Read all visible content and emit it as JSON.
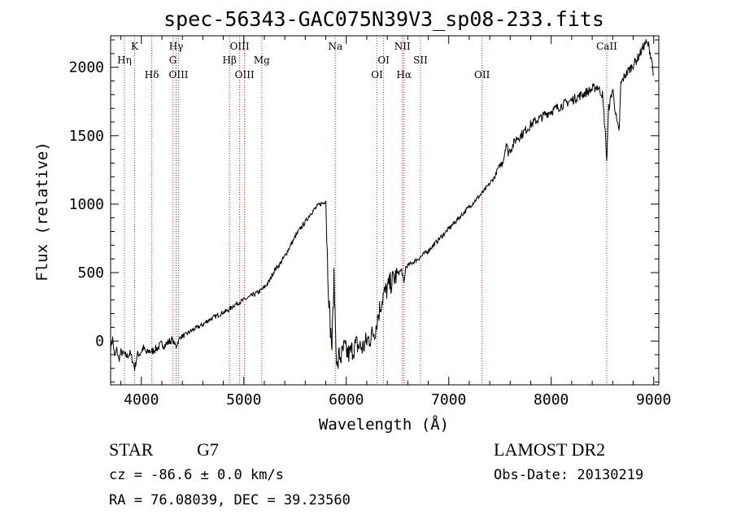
{
  "footer": {
    "object_class": "STAR",
    "subclass": "G7",
    "survey": "LAMOST DR2",
    "redshift_line": "cz = -86.6 ± 0.0 km/s",
    "coords_line": "RA =  76.08039, DEC =  39.23560",
    "obs_date_line": "Obs-Date: 20130219"
  },
  "colors": {
    "spectrum": "#000000",
    "line_markers": "#b03030",
    "axes": "#000000"
  },
  "chart_data": {
    "type": "line",
    "title": "spec-56343-GAC075N39V3_sp08-233.fits",
    "xlabel": "Wavelength (Å)",
    "ylabel": "Flux (relative)",
    "xlim": [
      3700,
      9050
    ],
    "ylim": [
      -320,
      2230
    ],
    "grid": false,
    "xticks": [
      4000,
      5000,
      6000,
      7000,
      8000,
      9000
    ],
    "yticks": [
      0,
      500,
      1000,
      1500,
      2000
    ],
    "series": [
      {
        "values": [
          [
            3700,
            -50
          ],
          [
            3720,
            20
          ],
          [
            3740,
            -120
          ],
          [
            3760,
            -60
          ],
          [
            3780,
            -140
          ],
          [
            3800,
            -80
          ],
          [
            3830,
            -100
          ],
          [
            3860,
            -110
          ],
          [
            3890,
            -90
          ],
          [
            3910,
            -130
          ],
          [
            3935,
            -200
          ],
          [
            3960,
            -100
          ],
          [
            3990,
            -90
          ],
          [
            4020,
            -50
          ],
          [
            4050,
            -90
          ],
          [
            4080,
            -70
          ],
          [
            4100,
            -80
          ],
          [
            4130,
            -60
          ],
          [
            4160,
            -50
          ],
          [
            4200,
            -20
          ],
          [
            4230,
            -30
          ],
          [
            4260,
            -10
          ],
          [
            4300,
            10
          ],
          [
            4340,
            -40
          ],
          [
            4380,
            30
          ],
          [
            4420,
            40
          ],
          [
            4460,
            60
          ],
          [
            4500,
            80
          ],
          [
            4550,
            100
          ],
          [
            4600,
            120
          ],
          [
            4650,
            150
          ],
          [
            4700,
            170
          ],
          [
            4750,
            190
          ],
          [
            4800,
            210
          ],
          [
            4860,
            230
          ],
          [
            4900,
            260
          ],
          [
            4950,
            280
          ],
          [
            5000,
            300
          ],
          [
            5050,
            320
          ],
          [
            5100,
            340
          ],
          [
            5150,
            360
          ],
          [
            5200,
            390
          ],
          [
            5250,
            440
          ],
          [
            5300,
            520
          ],
          [
            5350,
            560
          ],
          [
            5400,
            620
          ],
          [
            5450,
            690
          ],
          [
            5500,
            760
          ],
          [
            5550,
            820
          ],
          [
            5600,
            870
          ],
          [
            5650,
            930
          ],
          [
            5700,
            970
          ],
          [
            5740,
            1000
          ],
          [
            5780,
            1010
          ],
          [
            5800,
            1030
          ],
          [
            5820,
            500
          ],
          [
            5840,
            150
          ],
          [
            5860,
            -50
          ],
          [
            5880,
            450
          ],
          [
            5895,
            100
          ],
          [
            5910,
            -220
          ],
          [
            5930,
            -100
          ],
          [
            5950,
            -120
          ],
          [
            5980,
            -50
          ],
          [
            6000,
            -80
          ],
          [
            6030,
            -100
          ],
          [
            6060,
            -60
          ],
          [
            6100,
            -30
          ],
          [
            6130,
            -40
          ],
          [
            6160,
            -50
          ],
          [
            6200,
            0
          ],
          [
            6240,
            30
          ],
          [
            6280,
            80
          ],
          [
            6300,
            150
          ],
          [
            6330,
            250
          ],
          [
            6360,
            330
          ],
          [
            6400,
            380
          ],
          [
            6430,
            420
          ],
          [
            6470,
            460
          ],
          [
            6500,
            490
          ],
          [
            6540,
            520
          ],
          [
            6563,
            420
          ],
          [
            6580,
            540
          ],
          [
            6620,
            560
          ],
          [
            6660,
            580
          ],
          [
            6700,
            600
          ],
          [
            6750,
            630
          ],
          [
            6800,
            660
          ],
          [
            6850,
            700
          ],
          [
            6900,
            740
          ],
          [
            6950,
            780
          ],
          [
            7000,
            820
          ],
          [
            7050,
            860
          ],
          [
            7100,
            900
          ],
          [
            7150,
            940
          ],
          [
            7200,
            980
          ],
          [
            7250,
            1020
          ],
          [
            7300,
            1060
          ],
          [
            7350,
            1100
          ],
          [
            7400,
            1150
          ],
          [
            7450,
            1200
          ],
          [
            7480,
            1260
          ],
          [
            7520,
            1300
          ],
          [
            7540,
            1350
          ],
          [
            7560,
            1450
          ],
          [
            7580,
            1380
          ],
          [
            7620,
            1420
          ],
          [
            7660,
            1480
          ],
          [
            7700,
            1500
          ],
          [
            7750,
            1540
          ],
          [
            7800,
            1580
          ],
          [
            7850,
            1610
          ],
          [
            7900,
            1630
          ],
          [
            7950,
            1660
          ],
          [
            8000,
            1680
          ],
          [
            8050,
            1700
          ],
          [
            8100,
            1720
          ],
          [
            8150,
            1740
          ],
          [
            8200,
            1760
          ],
          [
            8250,
            1780
          ],
          [
            8300,
            1800
          ],
          [
            8350,
            1820
          ],
          [
            8400,
            1840
          ],
          [
            8450,
            1860
          ],
          [
            8500,
            1800
          ],
          [
            8530,
            1500
          ],
          [
            8542,
            1320
          ],
          [
            8560,
            1700
          ],
          [
            8600,
            1840
          ],
          [
            8640,
            1600
          ],
          [
            8662,
            1520
          ],
          [
            8680,
            1880
          ],
          [
            8720,
            1940
          ],
          [
            8760,
            1980
          ],
          [
            8800,
            2020
          ],
          [
            8840,
            2060
          ],
          [
            8880,
            2120
          ],
          [
            8920,
            2180
          ],
          [
            8950,
            2160
          ],
          [
            8980,
            2060
          ],
          [
            9000,
            1950
          ]
        ]
      }
    ],
    "line_markers": [
      {
        "label": "Hη",
        "x": 3835,
        "row": 2
      },
      {
        "label": "K",
        "x": 3934,
        "row": 1
      },
      {
        "label": "Hδ",
        "x": 4102,
        "row": 3
      },
      {
        "label": "Hγ",
        "x": 4340,
        "row": 1
      },
      {
        "label": "G",
        "x": 4308,
        "row": 2
      },
      {
        "label": "OIII",
        "x": 4363,
        "row": 3
      },
      {
        "label": "OIII",
        "x": 4959,
        "row": 1
      },
      {
        "label": "Hβ",
        "x": 4861,
        "row": 2
      },
      {
        "label": "OIII",
        "x": 5007,
        "row": 3
      },
      {
        "label": "Mg",
        "x": 5175,
        "row": 2
      },
      {
        "label": "Na",
        "x": 5893,
        "row": 1
      },
      {
        "label": "OI",
        "x": 6364,
        "row": 2
      },
      {
        "label": "OI",
        "x": 6300,
        "row": 3
      },
      {
        "label": "NII",
        "x": 6548,
        "row": 1
      },
      {
        "label": "Hα",
        "x": 6563,
        "row": 3
      },
      {
        "label": "SII",
        "x": 6724,
        "row": 2
      },
      {
        "label": "OII",
        "x": 7325,
        "row": 3
      },
      {
        "label": "CaII",
        "x": 8542,
        "row": 1
      }
    ]
  }
}
